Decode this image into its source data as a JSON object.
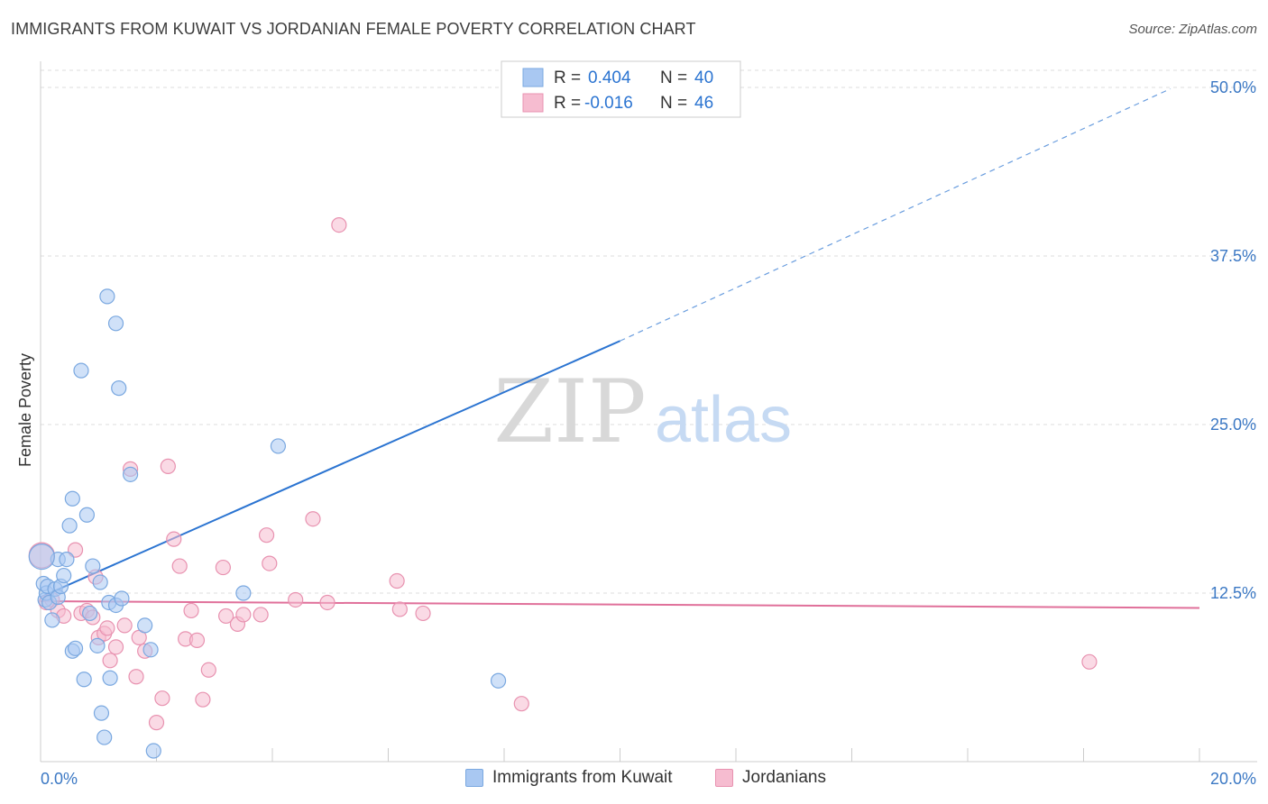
{
  "header": {
    "title": "IMMIGRANTS FROM KUWAIT VS JORDANIAN FEMALE POVERTY CORRELATION CHART",
    "source": "Source: ZipAtlas.com"
  },
  "watermark": {
    "zip": "ZIP",
    "atlas": "atlas"
  },
  "colors": {
    "blue_fill": "#a9c8f2",
    "blue_stroke": "#7aa8e0",
    "blue_line": "#2b74d1",
    "pink_fill": "#f6bcd0",
    "pink_stroke": "#e892b0",
    "pink_line": "#e0709a",
    "tick_label": "#3b78c4",
    "grid": "#dddddd"
  },
  "legend_top": {
    "rows": [
      {
        "r_label": "R = ",
        "r_value": "0.404",
        "n_label": "N = ",
        "n_value": "40"
      },
      {
        "r_label": "R = ",
        "r_value": "-0.016",
        "n_label": "N = ",
        "n_value": "46"
      }
    ]
  },
  "legend_bottom": {
    "items": [
      {
        "label": "Immigrants from Kuwait"
      },
      {
        "label": "Jordanians"
      }
    ]
  },
  "chart_data": {
    "type": "scatter",
    "title": "IMMIGRANTS FROM KUWAIT VS JORDANIAN FEMALE POVERTY CORRELATION CHART",
    "xlabel": "",
    "ylabel": "Female Poverty",
    "xlim": [
      0,
      20
    ],
    "ylim": [
      0,
      50
    ],
    "x_tick_labels": [
      "0.0%",
      "20.0%"
    ],
    "y_ticks": [
      12.5,
      25.0,
      37.5,
      50.0
    ],
    "y_tick_labels": [
      "12.5%",
      "25.0%",
      "37.5%",
      "50.0%"
    ],
    "grid": true,
    "legend_position": "top-center",
    "series": [
      {
        "name": "Immigrants from Kuwait",
        "r": 0.404,
        "n": 40,
        "points": [
          [
            0.05,
            13.2
          ],
          [
            0.08,
            12.0
          ],
          [
            0.1,
            12.5
          ],
          [
            0.12,
            13.0
          ],
          [
            0.15,
            11.8
          ],
          [
            0.2,
            10.5
          ],
          [
            0.25,
            12.8
          ],
          [
            0.3,
            15.0
          ],
          [
            0.3,
            12.2
          ],
          [
            0.35,
            13.0
          ],
          [
            0.4,
            13.8
          ],
          [
            0.45,
            15.0
          ],
          [
            0.5,
            17.5
          ],
          [
            0.55,
            19.5
          ],
          [
            0.55,
            8.2
          ],
          [
            0.6,
            8.4
          ],
          [
            0.7,
            29.0
          ],
          [
            0.75,
            6.1
          ],
          [
            0.8,
            18.3
          ],
          [
            0.85,
            11.0
          ],
          [
            0.9,
            14.5
          ],
          [
            0.98,
            8.6
          ],
          [
            1.03,
            13.3
          ],
          [
            1.05,
            3.6
          ],
          [
            1.1,
            1.8
          ],
          [
            1.15,
            34.5
          ],
          [
            1.18,
            11.8
          ],
          [
            1.2,
            6.2
          ],
          [
            1.3,
            32.5
          ],
          [
            1.3,
            11.6
          ],
          [
            1.35,
            27.7
          ],
          [
            1.4,
            12.1
          ],
          [
            1.55,
            21.3
          ],
          [
            1.8,
            10.1
          ],
          [
            1.9,
            8.3
          ],
          [
            1.95,
            0.8
          ],
          [
            3.5,
            12.5
          ],
          [
            4.1,
            23.4
          ],
          [
            7.9,
            6.0
          ],
          [
            0.02,
            15.2
          ]
        ],
        "trend": {
          "x0": 0,
          "y0": 12.2,
          "x1": 10,
          "y1": 31.2,
          "dashed_to": [
            19.5,
            49.9
          ]
        }
      },
      {
        "name": "Jordanians",
        "r": -0.016,
        "n": 46,
        "points": [
          [
            0.02,
            15.3
          ],
          [
            0.1,
            11.8
          ],
          [
            0.2,
            12.0
          ],
          [
            0.3,
            11.2
          ],
          [
            0.4,
            10.8
          ],
          [
            0.6,
            15.7
          ],
          [
            0.7,
            11.0
          ],
          [
            0.8,
            11.2
          ],
          [
            0.9,
            10.7
          ],
          [
            0.95,
            13.7
          ],
          [
            1.0,
            9.2
          ],
          [
            1.1,
            9.5
          ],
          [
            1.15,
            9.9
          ],
          [
            1.2,
            7.5
          ],
          [
            1.3,
            8.5
          ],
          [
            1.45,
            10.1
          ],
          [
            1.55,
            21.7
          ],
          [
            1.65,
            6.3
          ],
          [
            1.7,
            9.2
          ],
          [
            1.8,
            8.2
          ],
          [
            2.0,
            2.9
          ],
          [
            2.1,
            4.7
          ],
          [
            2.2,
            21.9
          ],
          [
            2.3,
            16.5
          ],
          [
            2.4,
            14.5
          ],
          [
            2.5,
            9.1
          ],
          [
            2.6,
            11.2
          ],
          [
            2.7,
            9.0
          ],
          [
            2.8,
            4.6
          ],
          [
            2.9,
            6.8
          ],
          [
            3.15,
            14.4
          ],
          [
            3.2,
            10.8
          ],
          [
            3.4,
            10.2
          ],
          [
            3.5,
            10.9
          ],
          [
            3.8,
            10.9
          ],
          [
            3.9,
            16.8
          ],
          [
            3.95,
            14.7
          ],
          [
            4.4,
            12.0
          ],
          [
            4.7,
            18.0
          ],
          [
            4.95,
            11.8
          ],
          [
            5.15,
            39.8
          ],
          [
            6.15,
            13.4
          ],
          [
            6.2,
            11.3
          ],
          [
            6.6,
            11.0
          ],
          [
            8.3,
            4.3
          ],
          [
            18.1,
            7.4
          ]
        ],
        "trend": {
          "x0": 0,
          "y0": 11.9,
          "x1": 20,
          "y1": 11.4
        }
      }
    ]
  }
}
